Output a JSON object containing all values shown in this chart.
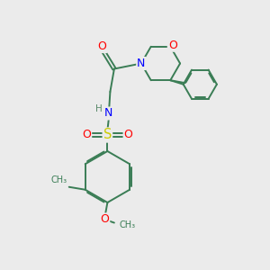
{
  "bg_color": "#ebebeb",
  "bond_color": "#3a7d55",
  "atom_colors": {
    "O": "#ff0000",
    "N": "#0000ff",
    "S": "#cccc00",
    "H": "#5a8a6a",
    "C": "#3a7d55"
  }
}
